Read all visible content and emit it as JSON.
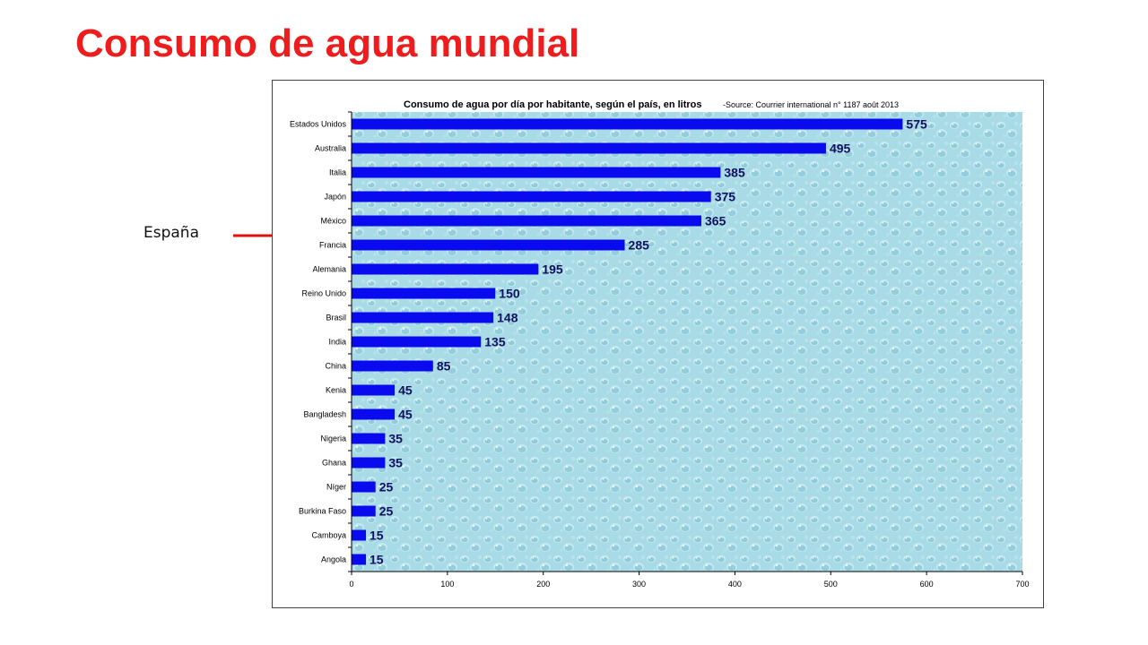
{
  "slide": {
    "title": "Consumo de agua mundial",
    "callout_label": "España",
    "title_color": "#ee1c1c",
    "arrow_color": "#e01010"
  },
  "chart_data": {
    "type": "bar",
    "orientation": "horizontal",
    "title": "Consumo de agua por día por habitante, según el país, en litros",
    "source": "-Source: Courrier international  n° 1187 août 2013",
    "categories": [
      "Estados Unidos",
      "Australia",
      "Italia",
      "Japón",
      "México",
      "Francia",
      "Alemania",
      "Reino Unido",
      "Brasil",
      "India",
      "China",
      "Kenia",
      "Bangladesh",
      "Nigeria",
      "Ghana",
      "Níger",
      "Burkina Faso",
      "Camboya",
      "Angola"
    ],
    "values": [
      575,
      495,
      385,
      375,
      365,
      285,
      195,
      150,
      148,
      135,
      85,
      45,
      45,
      35,
      35,
      25,
      25,
      15,
      15
    ],
    "xlim": [
      0,
      700
    ],
    "xticks": [
      0,
      100,
      200,
      300,
      400,
      500,
      600,
      700
    ],
    "bar_color": "#0a0aee",
    "plot_background": "water-drops",
    "grid": false,
    "data_labels": true
  }
}
